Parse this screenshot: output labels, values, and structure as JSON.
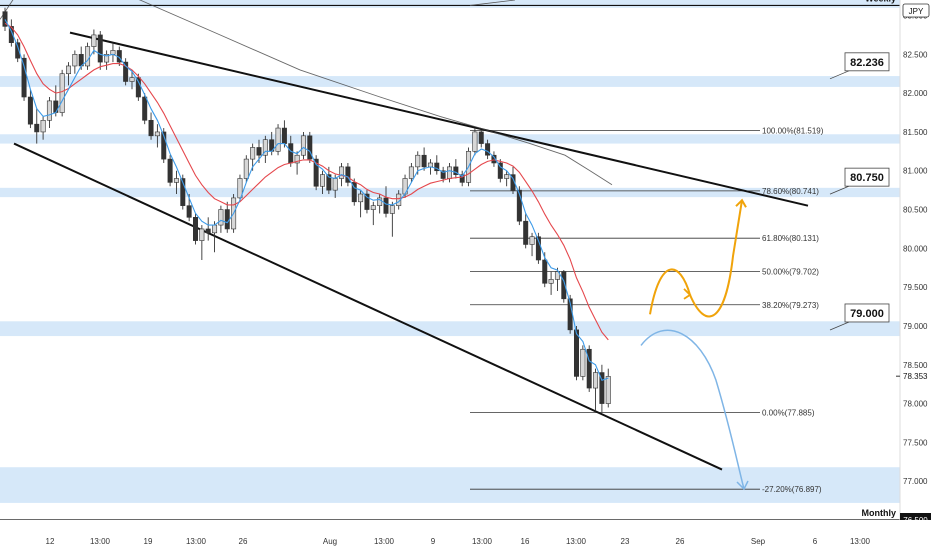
{
  "symbol_badge": "JPY",
  "chart_data": {
    "type": "candlestick",
    "y_min": 76.5,
    "y_max": 83.2,
    "x_ticks": [
      "12",
      "13:00",
      "19",
      "13:00",
      "26",
      "Aug",
      "13:00",
      "9",
      "13:00",
      "16",
      "13:00",
      "23",
      "26",
      "Sep",
      "6",
      "13:00"
    ],
    "y_ticks": [
      "83.000",
      "82.500",
      "82.000",
      "81.500",
      "81.000",
      "80.500",
      "80.000",
      "79.500",
      "79.000",
      "78.500",
      "78.000",
      "77.500",
      "77.000"
    ],
    "current_price": "78.353",
    "weekly_label": "Weekly",
    "monthly_label": "Monthly",
    "monthly_price": "76.500",
    "zones": [
      {
        "name": "weekly",
        "low": 83.1,
        "high": 83.2
      },
      {
        "name": "82.236",
        "low": 82.08,
        "high": 82.22
      },
      {
        "name": "81.4",
        "low": 81.35,
        "high": 81.47
      },
      {
        "name": "80.750",
        "low": 80.66,
        "high": 80.78
      },
      {
        "name": "79.000",
        "low": 78.87,
        "high": 79.06
      },
      {
        "name": "monthly-demand",
        "low": 76.72,
        "high": 77.18
      }
    ],
    "level_callouts": [
      {
        "label": "82.236",
        "price": 82.236
      },
      {
        "label": "80.750",
        "price": 80.75
      },
      {
        "label": "79.000",
        "price": 79.0
      }
    ],
    "fib_levels": [
      {
        "label": "100.00%(81.519)",
        "price": 81.519
      },
      {
        "label": "78.60%(80.741)",
        "price": 80.741
      },
      {
        "label": "61.80%(80.131)",
        "price": 80.131
      },
      {
        "label": "50.00%(79.702)",
        "price": 79.702
      },
      {
        "label": "38.20%(79.273)",
        "price": 79.273
      },
      {
        "label": "0.00%(77.885)",
        "price": 77.885
      },
      {
        "label": "-27.20%(76.897)",
        "price": 76.897
      }
    ],
    "wedge_top": [
      {
        "bar": 30,
        "price": 82.78
      },
      {
        "bar": 345,
        "price": 80.55
      }
    ],
    "wedge_bottom": [
      {
        "bar": 5,
        "price": 81.35
      },
      {
        "bar": 305,
        "price": 77.15
      }
    ],
    "colors": {
      "up": "#d7d7d7",
      "down": "#333333",
      "zone": "#cfe4f8",
      "fast_ma": "#3d9be9",
      "slow_ma": "#e5484d",
      "long_ma": "#444444",
      "bull_path": "#f0a30a",
      "bear_path": "#7fb5e6"
    },
    "bars": [
      {
        "o": 83.05,
        "h": 83.1,
        "l": 82.8,
        "c": 82.86
      },
      {
        "o": 82.86,
        "h": 82.95,
        "l": 82.6,
        "c": 82.65
      },
      {
        "o": 82.65,
        "h": 82.7,
        "l": 82.4,
        "c": 82.45
      },
      {
        "o": 82.45,
        "h": 82.5,
        "l": 81.9,
        "c": 81.95
      },
      {
        "o": 81.95,
        "h": 82.05,
        "l": 81.55,
        "c": 81.6
      },
      {
        "o": 81.6,
        "h": 81.8,
        "l": 81.35,
        "c": 81.5
      },
      {
        "o": 81.5,
        "h": 81.7,
        "l": 81.4,
        "c": 81.65
      },
      {
        "o": 81.65,
        "h": 81.95,
        "l": 81.55,
        "c": 81.9
      },
      {
        "o": 81.9,
        "h": 82.1,
        "l": 81.7,
        "c": 81.75
      },
      {
        "o": 81.75,
        "h": 82.3,
        "l": 81.7,
        "c": 82.25
      },
      {
        "o": 82.25,
        "h": 82.4,
        "l": 82.1,
        "c": 82.35
      },
      {
        "o": 82.35,
        "h": 82.55,
        "l": 82.25,
        "c": 82.5
      },
      {
        "o": 82.5,
        "h": 82.6,
        "l": 82.3,
        "c": 82.35
      },
      {
        "o": 82.35,
        "h": 82.65,
        "l": 82.3,
        "c": 82.6
      },
      {
        "o": 82.6,
        "h": 82.82,
        "l": 82.5,
        "c": 82.75
      },
      {
        "o": 82.75,
        "h": 82.8,
        "l": 82.3,
        "c": 82.4
      },
      {
        "o": 82.4,
        "h": 82.55,
        "l": 82.3,
        "c": 82.5
      },
      {
        "o": 82.5,
        "h": 82.65,
        "l": 82.4,
        "c": 82.55
      },
      {
        "o": 82.55,
        "h": 82.6,
        "l": 82.35,
        "c": 82.4
      },
      {
        "o": 82.4,
        "h": 82.45,
        "l": 82.1,
        "c": 82.15
      },
      {
        "o": 82.15,
        "h": 82.3,
        "l": 82.05,
        "c": 82.2
      },
      {
        "o": 82.2,
        "h": 82.25,
        "l": 81.9,
        "c": 81.95
      },
      {
        "o": 81.95,
        "h": 82.0,
        "l": 81.6,
        "c": 81.65
      },
      {
        "o": 81.65,
        "h": 81.75,
        "l": 81.4,
        "c": 81.45
      },
      {
        "o": 81.45,
        "h": 81.6,
        "l": 81.3,
        "c": 81.5
      },
      {
        "o": 81.5,
        "h": 81.55,
        "l": 81.1,
        "c": 81.15
      },
      {
        "o": 81.15,
        "h": 81.2,
        "l": 80.8,
        "c": 80.85
      },
      {
        "o": 80.85,
        "h": 81.0,
        "l": 80.7,
        "c": 80.9
      },
      {
        "o": 80.9,
        "h": 80.95,
        "l": 80.5,
        "c": 80.55
      },
      {
        "o": 80.55,
        "h": 80.7,
        "l": 80.35,
        "c": 80.4
      },
      {
        "o": 80.4,
        "h": 80.45,
        "l": 80.05,
        "c": 80.1
      },
      {
        "o": 80.1,
        "h": 80.3,
        "l": 79.85,
        "c": 80.25
      },
      {
        "o": 80.25,
        "h": 80.4,
        "l": 80.1,
        "c": 80.2
      },
      {
        "o": 80.2,
        "h": 80.35,
        "l": 79.95,
        "c": 80.3
      },
      {
        "o": 80.3,
        "h": 80.55,
        "l": 80.2,
        "c": 80.5
      },
      {
        "o": 80.5,
        "h": 80.6,
        "l": 80.2,
        "c": 80.25
      },
      {
        "o": 80.25,
        "h": 80.7,
        "l": 80.2,
        "c": 80.65
      },
      {
        "o": 80.65,
        "h": 80.95,
        "l": 80.6,
        "c": 80.9
      },
      {
        "o": 80.9,
        "h": 81.2,
        "l": 80.85,
        "c": 81.15
      },
      {
        "o": 81.15,
        "h": 81.35,
        "l": 81.0,
        "c": 81.3
      },
      {
        "o": 81.3,
        "h": 81.4,
        "l": 81.1,
        "c": 81.2
      },
      {
        "o": 81.2,
        "h": 81.45,
        "l": 81.1,
        "c": 81.4
      },
      {
        "o": 81.4,
        "h": 81.5,
        "l": 81.2,
        "c": 81.25
      },
      {
        "o": 81.25,
        "h": 81.6,
        "l": 81.2,
        "c": 81.55
      },
      {
        "o": 81.55,
        "h": 81.65,
        "l": 81.3,
        "c": 81.35
      },
      {
        "o": 81.35,
        "h": 81.45,
        "l": 81.05,
        "c": 81.1
      },
      {
        "o": 81.1,
        "h": 81.25,
        "l": 80.95,
        "c": 81.2
      },
      {
        "o": 81.2,
        "h": 81.5,
        "l": 81.15,
        "c": 81.45
      },
      {
        "o": 81.45,
        "h": 81.5,
        "l": 81.1,
        "c": 81.15
      },
      {
        "o": 81.15,
        "h": 81.2,
        "l": 80.75,
        "c": 80.8
      },
      {
        "o": 80.8,
        "h": 81.0,
        "l": 80.7,
        "c": 80.95
      },
      {
        "o": 80.95,
        "h": 81.05,
        "l": 80.7,
        "c": 80.75
      },
      {
        "o": 80.75,
        "h": 80.95,
        "l": 80.65,
        "c": 80.9
      },
      {
        "o": 80.9,
        "h": 81.1,
        "l": 80.8,
        "c": 81.05
      },
      {
        "o": 81.05,
        "h": 81.1,
        "l": 80.8,
        "c": 80.85
      },
      {
        "o": 80.85,
        "h": 80.9,
        "l": 80.55,
        "c": 80.6
      },
      {
        "o": 80.6,
        "h": 80.75,
        "l": 80.4,
        "c": 80.7
      },
      {
        "o": 80.7,
        "h": 80.75,
        "l": 80.45,
        "c": 80.5
      },
      {
        "o": 80.5,
        "h": 80.6,
        "l": 80.3,
        "c": 80.55
      },
      {
        "o": 80.55,
        "h": 80.7,
        "l": 80.45,
        "c": 80.65
      },
      {
        "o": 80.65,
        "h": 80.8,
        "l": 80.4,
        "c": 80.45
      },
      {
        "o": 80.45,
        "h": 80.6,
        "l": 80.15,
        "c": 80.55
      },
      {
        "o": 80.55,
        "h": 80.75,
        "l": 80.5,
        "c": 80.7
      },
      {
        "o": 80.7,
        "h": 80.95,
        "l": 80.65,
        "c": 80.9
      },
      {
        "o": 80.9,
        "h": 81.1,
        "l": 80.85,
        "c": 81.05
      },
      {
        "o": 81.05,
        "h": 81.25,
        "l": 80.95,
        "c": 81.2
      },
      {
        "o": 81.2,
        "h": 81.3,
        "l": 81.0,
        "c": 81.05
      },
      {
        "o": 81.05,
        "h": 81.15,
        "l": 80.95,
        "c": 81.1
      },
      {
        "o": 81.1,
        "h": 81.2,
        "l": 80.95,
        "c": 81.0
      },
      {
        "o": 81.0,
        "h": 81.05,
        "l": 80.85,
        "c": 80.9
      },
      {
        "o": 80.9,
        "h": 81.1,
        "l": 80.85,
        "c": 81.05
      },
      {
        "o": 81.05,
        "h": 81.15,
        "l": 80.9,
        "c": 80.95
      },
      {
        "o": 80.95,
        "h": 81.0,
        "l": 80.8,
        "c": 80.85
      },
      {
        "o": 80.85,
        "h": 81.3,
        "l": 80.8,
        "c": 81.25
      },
      {
        "o": 81.25,
        "h": 81.55,
        "l": 81.2,
        "c": 81.5
      },
      {
        "o": 81.5,
        "h": 81.52,
        "l": 81.3,
        "c": 81.35
      },
      {
        "o": 81.35,
        "h": 81.4,
        "l": 81.15,
        "c": 81.2
      },
      {
        "o": 81.2,
        "h": 81.25,
        "l": 81.05,
        "c": 81.1
      },
      {
        "o": 81.1,
        "h": 81.15,
        "l": 80.85,
        "c": 80.9
      },
      {
        "o": 80.9,
        "h": 81.0,
        "l": 80.8,
        "c": 80.95
      },
      {
        "o": 80.95,
        "h": 81.05,
        "l": 80.7,
        "c": 80.75
      },
      {
        "o": 80.75,
        "h": 80.8,
        "l": 80.3,
        "c": 80.35
      },
      {
        "o": 80.35,
        "h": 80.45,
        "l": 80.0,
        "c": 80.05
      },
      {
        "o": 80.05,
        "h": 80.2,
        "l": 79.9,
        "c": 80.15
      },
      {
        "o": 80.15,
        "h": 80.2,
        "l": 79.8,
        "c": 79.85
      },
      {
        "o": 79.85,
        "h": 79.95,
        "l": 79.5,
        "c": 79.55
      },
      {
        "o": 79.55,
        "h": 79.7,
        "l": 79.4,
        "c": 79.6
      },
      {
        "o": 79.6,
        "h": 79.75,
        "l": 79.45,
        "c": 79.7
      },
      {
        "o": 79.7,
        "h": 79.72,
        "l": 79.3,
        "c": 79.35
      },
      {
        "o": 79.35,
        "h": 79.4,
        "l": 78.9,
        "c": 78.95
      },
      {
        "o": 78.95,
        "h": 79.0,
        "l": 78.3,
        "c": 78.35
      },
      {
        "o": 78.35,
        "h": 78.75,
        "l": 78.3,
        "c": 78.7
      },
      {
        "o": 78.7,
        "h": 78.75,
        "l": 78.15,
        "c": 78.2
      },
      {
        "o": 78.2,
        "h": 78.45,
        "l": 77.9,
        "c": 78.4
      },
      {
        "o": 78.4,
        "h": 78.5,
        "l": 77.885,
        "c": 78.0
      },
      {
        "o": 78.0,
        "h": 78.45,
        "l": 77.95,
        "c": 78.35
      }
    ],
    "fast_ma_values": [
      82.95,
      82.8,
      82.6,
      82.35,
      82.05,
      81.8,
      81.7,
      81.72,
      81.75,
      81.9,
      82.05,
      82.2,
      82.35,
      82.42,
      82.55,
      82.5,
      82.48,
      82.5,
      82.46,
      82.35,
      82.28,
      82.15,
      81.98,
      81.8,
      81.65,
      81.45,
      81.22,
      81.05,
      80.85,
      80.65,
      80.45,
      80.35,
      80.3,
      80.3,
      80.36,
      80.33,
      80.45,
      80.62,
      80.85,
      81.05,
      81.15,
      81.25,
      81.25,
      81.35,
      81.35,
      81.25,
      81.22,
      81.3,
      81.25,
      81.08,
      81.02,
      80.92,
      80.9,
      80.95,
      80.92,
      80.78,
      80.75,
      80.66,
      80.62,
      80.63,
      80.57,
      80.56,
      80.6,
      80.7,
      80.85,
      81.0,
      81.03,
      81.05,
      81.03,
      80.98,
      81.0,
      80.98,
      80.93,
      81.05,
      81.22,
      81.28,
      81.25,
      81.18,
      81.05,
      81.0,
      80.9,
      80.7,
      80.45,
      80.3,
      80.1,
      79.88,
      79.75,
      79.72,
      79.58,
      79.3,
      78.9,
      78.8,
      78.55,
      78.5,
      78.3,
      78.33
    ],
    "slow_ma_values": [
      82.9,
      82.85,
      82.75,
      82.6,
      82.42,
      82.25,
      82.12,
      82.05,
      82.0,
      82.02,
      82.06,
      82.12,
      82.18,
      82.24,
      82.3,
      82.34,
      82.36,
      82.38,
      82.38,
      82.35,
      82.3,
      82.22,
      82.12,
      82.0,
      81.88,
      81.74,
      81.58,
      81.42,
      81.26,
      81.1,
      80.94,
      80.82,
      80.72,
      80.64,
      80.6,
      80.56,
      80.56,
      80.6,
      80.68,
      80.76,
      80.84,
      80.92,
      80.98,
      81.04,
      81.08,
      81.1,
      81.12,
      81.14,
      81.14,
      81.1,
      81.06,
      81.0,
      80.96,
      80.94,
      80.92,
      80.86,
      80.82,
      80.76,
      80.72,
      80.7,
      80.66,
      80.64,
      80.64,
      80.66,
      80.7,
      80.76,
      80.8,
      80.84,
      80.86,
      80.88,
      80.9,
      80.91,
      80.92,
      80.96,
      81.02,
      81.08,
      81.12,
      81.14,
      81.12,
      81.1,
      81.06,
      80.98,
      80.86,
      80.74,
      80.6,
      80.44,
      80.3,
      80.18,
      80.04,
      79.86,
      79.62,
      79.44,
      79.24,
      79.08,
      78.92,
      78.82
    ]
  }
}
